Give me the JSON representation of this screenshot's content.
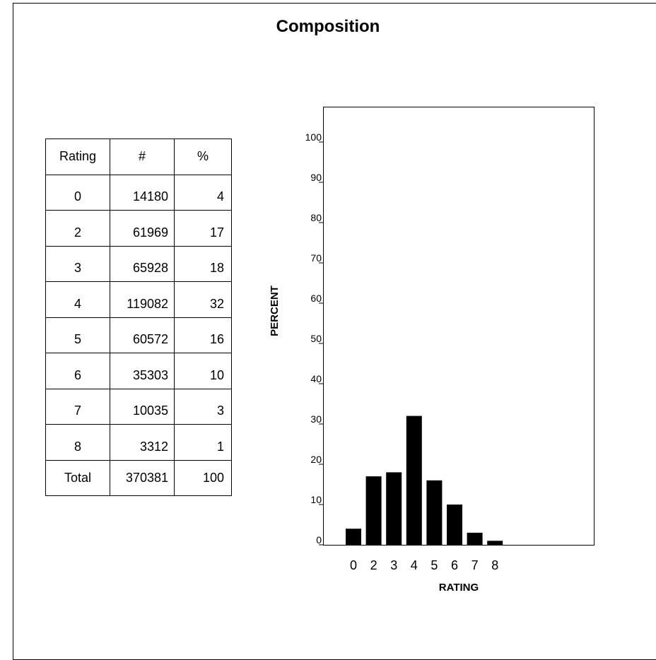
{
  "page_title": "Composition",
  "table": {
    "headers": [
      "Rating",
      "#",
      "%"
    ],
    "rows": [
      {
        "rating": "0",
        "count": "14180",
        "percent": "4"
      },
      {
        "rating": "2",
        "count": "61969",
        "percent": "17"
      },
      {
        "rating": "3",
        "count": "65928",
        "percent": "18"
      },
      {
        "rating": "4",
        "count": "119082",
        "percent": "32"
      },
      {
        "rating": "5",
        "count": "60572",
        "percent": "16"
      },
      {
        "rating": "6",
        "count": "35303",
        "percent": "10"
      },
      {
        "rating": "7",
        "count": "10035",
        "percent": "3"
      },
      {
        "rating": "8",
        "count": "3312",
        "percent": "1"
      }
    ],
    "total": {
      "label": "Total",
      "count": "370381",
      "percent": "100"
    }
  },
  "chart_data": {
    "type": "bar",
    "categories": [
      "0",
      "2",
      "3",
      "4",
      "5",
      "6",
      "7",
      "8"
    ],
    "values": [
      4,
      17,
      18,
      32,
      16,
      10,
      3,
      1
    ],
    "title": "",
    "xlabel": "RATING",
    "ylabel": "PERCENT",
    "ylim": [
      0,
      100
    ],
    "yticks": [
      0,
      10,
      20,
      30,
      40,
      50,
      60,
      70,
      80,
      90,
      100
    ],
    "grid": false,
    "bar_color": "#000000"
  }
}
